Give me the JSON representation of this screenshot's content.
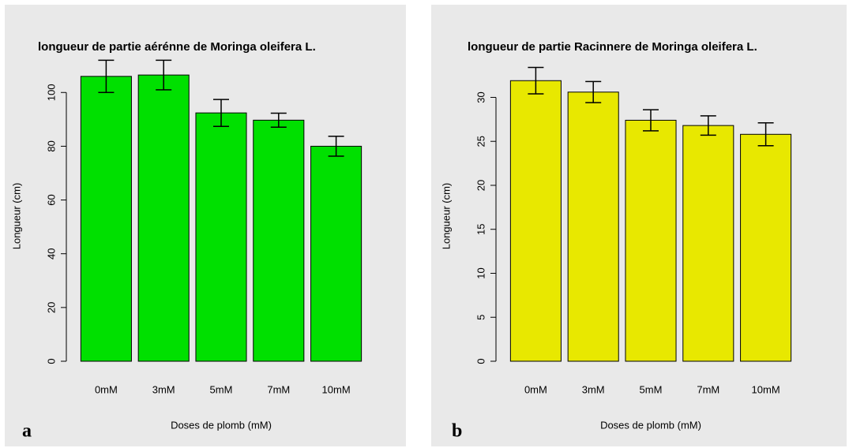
{
  "chart_data": [
    {
      "type": "bar",
      "title": "longueur de partie aérénne de Moringa oleifera L.",
      "panel_label": "a",
      "xlabel": "Doses de plomb (mM)",
      "ylabel": "Longueur (cm)",
      "categories": [
        "0mM",
        "3mM",
        "5mM",
        "7mM",
        "10mM"
      ],
      "values": [
        106,
        106.5,
        92.4,
        89.7,
        80
      ],
      "errors": [
        6,
        5.5,
        5,
        2.6,
        3.7
      ],
      "color": "#00e000",
      "ylim": [
        0,
        108
      ],
      "yticks": [
        0,
        20,
        40,
        60,
        80,
        100
      ]
    },
    {
      "type": "bar",
      "title": "longueur de partie Racinnere de Moringa oleifera L.",
      "panel_label": "b",
      "xlabel": "Doses de plomb (mM)",
      "ylabel": "Longueur (cm)",
      "categories": [
        "0mM",
        "3mM",
        "5mM",
        "7mM",
        "10mM"
      ],
      "values": [
        31.9,
        30.6,
        27.4,
        26.8,
        25.8
      ],
      "errors": [
        1.5,
        1.2,
        1.2,
        1.1,
        1.3
      ],
      "color": "#e8e800",
      "ylim": [
        0,
        33
      ],
      "yticks": [
        0,
        5,
        10,
        15,
        20,
        25,
        30
      ]
    }
  ]
}
